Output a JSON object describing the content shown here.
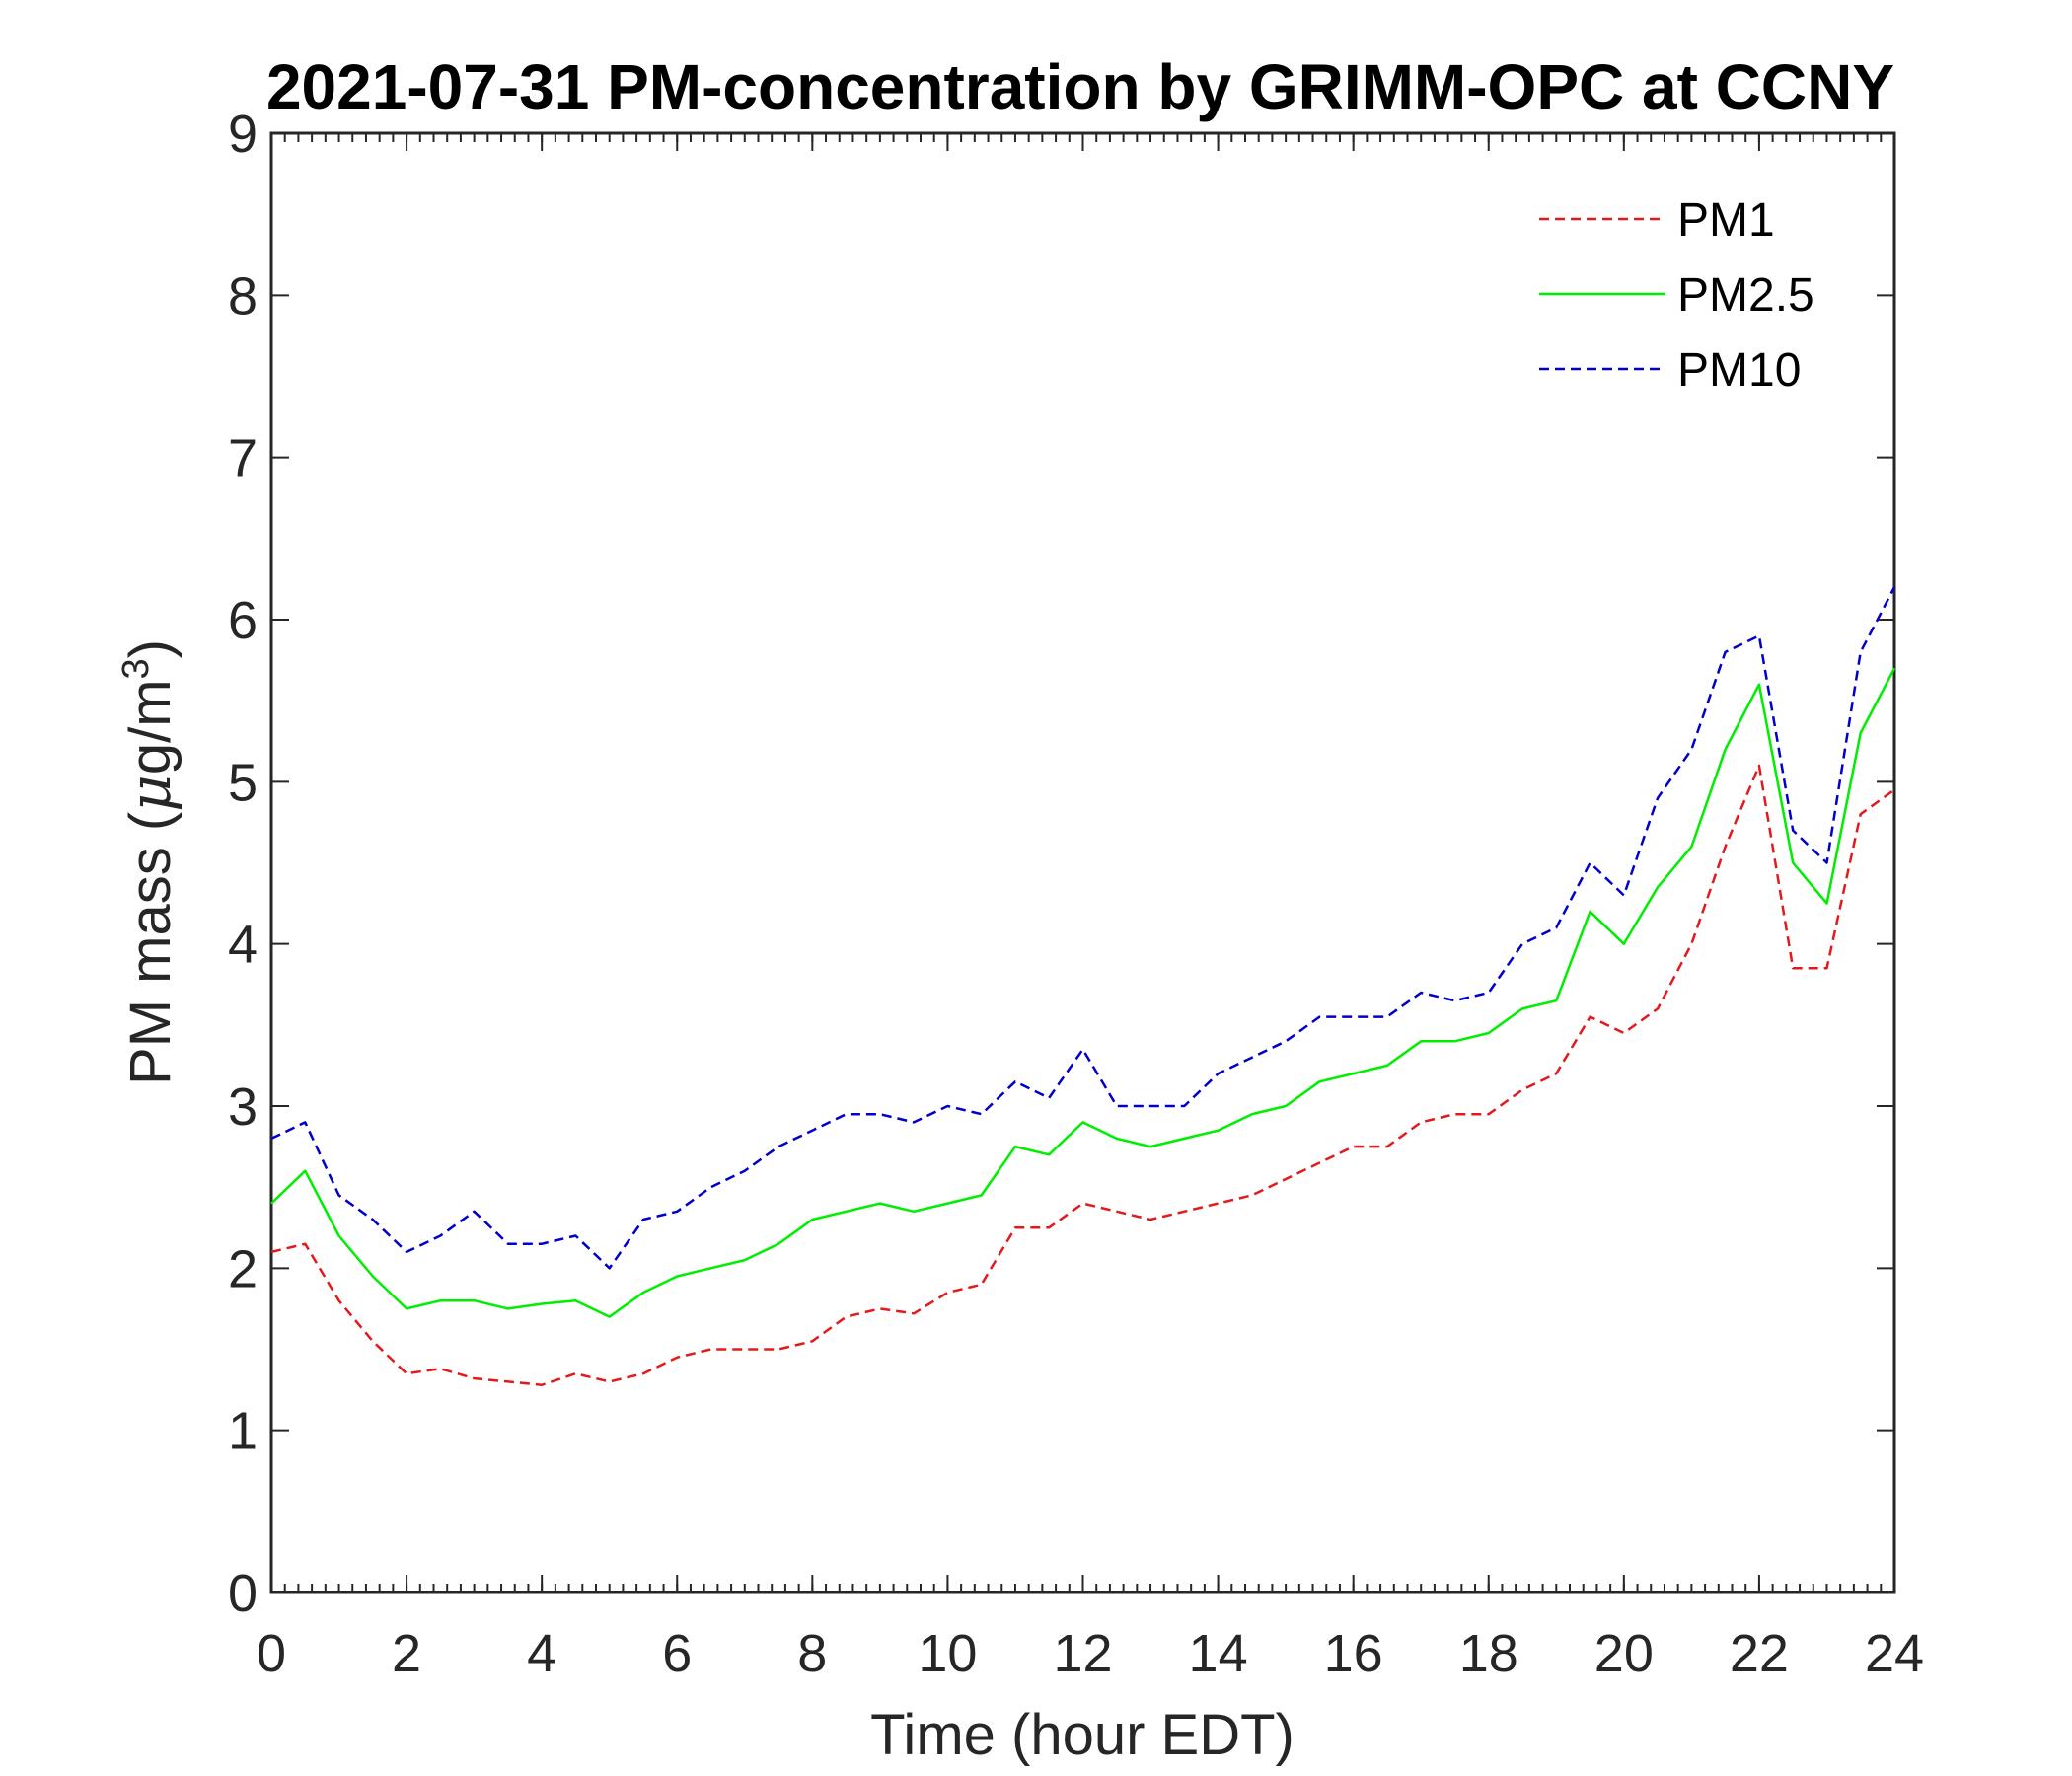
{
  "chart_data": {
    "type": "line",
    "title": "2021-07-31 PM-concentration by GRIMM-OPC at CCNY",
    "xlabel": "Time (hour EDT)",
    "ylabel": "PM mass (μg/m3)",
    "ylabel_parts": {
      "main": "PM mass (",
      "mu": "μ",
      "unit": "g/m",
      "sup": "3",
      "close": ")"
    },
    "xlim": [
      0,
      24
    ],
    "ylim": [
      0,
      9
    ],
    "xticks": [
      0,
      2,
      4,
      6,
      8,
      10,
      12,
      14,
      16,
      18,
      20,
      22,
      24
    ],
    "xtick_labels": [
      "0",
      "2",
      "4",
      "6",
      "8",
      "10",
      "12",
      "14",
      "16",
      "18",
      "20",
      "22",
      "24"
    ],
    "yticks": [
      0,
      1,
      2,
      3,
      4,
      5,
      6,
      7,
      8,
      9
    ],
    "ytick_labels": [
      "0",
      "1",
      "2",
      "3",
      "4",
      "5",
      "6",
      "7",
      "8",
      "9"
    ],
    "grid": false,
    "legend_position": "top-right",
    "x": [
      0,
      0.5,
      1,
      1.5,
      2,
      2.5,
      3,
      3.5,
      4,
      4.5,
      5,
      5.5,
      6,
      6.5,
      7,
      7.5,
      8,
      8.5,
      9,
      9.5,
      10,
      10.5,
      11,
      11.5,
      12,
      12.5,
      13,
      13.5,
      14,
      14.5,
      15,
      15.5,
      16,
      16.5,
      17,
      17.5,
      18,
      18.5,
      19,
      19.5,
      20,
      20.5,
      21,
      21.5,
      22,
      22.5,
      23,
      23.5,
      24
    ],
    "series": [
      {
        "name": "PM1",
        "color": "#e31a1c",
        "dash": "dashed",
        "values": [
          2.1,
          2.15,
          1.8,
          1.55,
          1.35,
          1.38,
          1.32,
          1.3,
          1.28,
          1.35,
          1.3,
          1.35,
          1.45,
          1.5,
          1.5,
          1.5,
          1.55,
          1.7,
          1.75,
          1.72,
          1.85,
          1.9,
          2.25,
          2.25,
          2.4,
          2.35,
          2.3,
          2.35,
          2.4,
          2.45,
          2.55,
          2.65,
          2.75,
          2.75,
          2.9,
          2.95,
          2.95,
          3.1,
          3.2,
          3.55,
          3.45,
          3.6,
          4.0,
          4.6,
          5.1,
          3.85,
          3.85,
          4.8,
          4.95
        ]
      },
      {
        "name": "PM2.5",
        "color": "#00ee00",
        "dash": "solid",
        "values": [
          2.4,
          2.6,
          2.2,
          1.95,
          1.75,
          1.8,
          1.8,
          1.75,
          1.78,
          1.8,
          1.7,
          1.85,
          1.95,
          2.0,
          2.05,
          2.15,
          2.3,
          2.35,
          2.4,
          2.35,
          2.4,
          2.45,
          2.75,
          2.7,
          2.9,
          2.8,
          2.75,
          2.8,
          2.85,
          2.95,
          3.0,
          3.15,
          3.2,
          3.25,
          3.4,
          3.4,
          3.45,
          3.6,
          3.65,
          4.2,
          4.0,
          4.35,
          4.6,
          5.2,
          5.6,
          4.5,
          4.25,
          5.3,
          5.7
        ]
      },
      {
        "name": "PM10",
        "color": "#0000cc",
        "dash": "dashed",
        "values": [
          2.8,
          2.9,
          2.45,
          2.3,
          2.1,
          2.2,
          2.35,
          2.15,
          2.15,
          2.2,
          2.0,
          2.3,
          2.35,
          2.5,
          2.6,
          2.75,
          2.85,
          2.95,
          2.95,
          2.9,
          3.0,
          2.95,
          3.15,
          3.05,
          3.35,
          3.0,
          3.0,
          3.0,
          3.2,
          3.3,
          3.4,
          3.55,
          3.55,
          3.55,
          3.7,
          3.65,
          3.7,
          4.0,
          4.1,
          4.5,
          4.3,
          4.9,
          5.2,
          5.8,
          5.9,
          4.7,
          4.5,
          5.8,
          6.2
        ]
      }
    ]
  }
}
